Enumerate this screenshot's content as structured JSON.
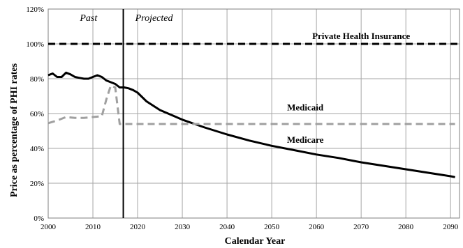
{
  "chart_data": {
    "type": "line",
    "xlabel": "Calendar Year",
    "ylabel": "Price as percentage of PHI rates",
    "xlim": [
      2000,
      2092
    ],
    "ylim": [
      0,
      120
    ],
    "x_ticks": [
      2000,
      2010,
      2020,
      2030,
      2040,
      2050,
      2060,
      2070,
      2080,
      2090
    ],
    "x_tick_labels": [
      "2000",
      "2010",
      "2020",
      "2030",
      "2040",
      "2050",
      "2060",
      "2070",
      "2080",
      "2090"
    ],
    "y_ticks": [
      0,
      20,
      40,
      60,
      80,
      100,
      120
    ],
    "y_tick_labels": [
      "0%",
      "20%",
      "40%",
      "60%",
      "80%",
      "100%",
      "120%"
    ],
    "grid": true,
    "divider_x": 2016.8,
    "period_labels": {
      "past": "Past",
      "projected": "Projected"
    },
    "series": [
      {
        "name": "Private Health Insurance",
        "style": "dashed",
        "color": "#000000",
        "x": [
          2000,
          2092
        ],
        "y": [
          100,
          100
        ]
      },
      {
        "name": "Medicaid",
        "style": "solid",
        "color": "#000000",
        "x": [
          2000,
          2001,
          2002,
          2003,
          2004,
          2005,
          2006,
          2007,
          2008,
          2009,
          2010,
          2011,
          2012,
          2013,
          2014,
          2015,
          2016,
          2017,
          2018,
          2019,
          2020,
          2022,
          2025,
          2030,
          2035,
          2040,
          2045,
          2050,
          2055,
          2060,
          2065,
          2070,
          2075,
          2080,
          2085,
          2090,
          2091
        ],
        "y": [
          82,
          83,
          81,
          81,
          83.5,
          82.5,
          81,
          80.5,
          80,
          80,
          81,
          82,
          81,
          79,
          78,
          77,
          75,
          75,
          74.5,
          73.5,
          72,
          67,
          62,
          56.5,
          52,
          48,
          44.5,
          41.5,
          39,
          36.5,
          34.5,
          32,
          30,
          28,
          26,
          24,
          23.5
        ]
      },
      {
        "name": "Medicare",
        "style": "dashed",
        "color": "#a0a0a0",
        "x": [
          2000,
          2002,
          2004,
          2006,
          2008,
          2010,
          2012,
          2013,
          2014,
          2015,
          2016,
          2017,
          2020,
          2040,
          2060,
          2080,
          2091
        ],
        "y": [
          54.5,
          56,
          58,
          57.5,
          57.5,
          58,
          58.5,
          68,
          76,
          75,
          54,
          54,
          54,
          54,
          54,
          54,
          54
        ]
      }
    ],
    "annotations": [
      {
        "text": "Private Health Insurance",
        "x": 2070,
        "y": 104.5
      },
      {
        "text": "Medicaid",
        "x": 2057.5,
        "y": 63.5
      },
      {
        "text": "Medicare",
        "x": 2057.5,
        "y": 44.8
      }
    ]
  }
}
